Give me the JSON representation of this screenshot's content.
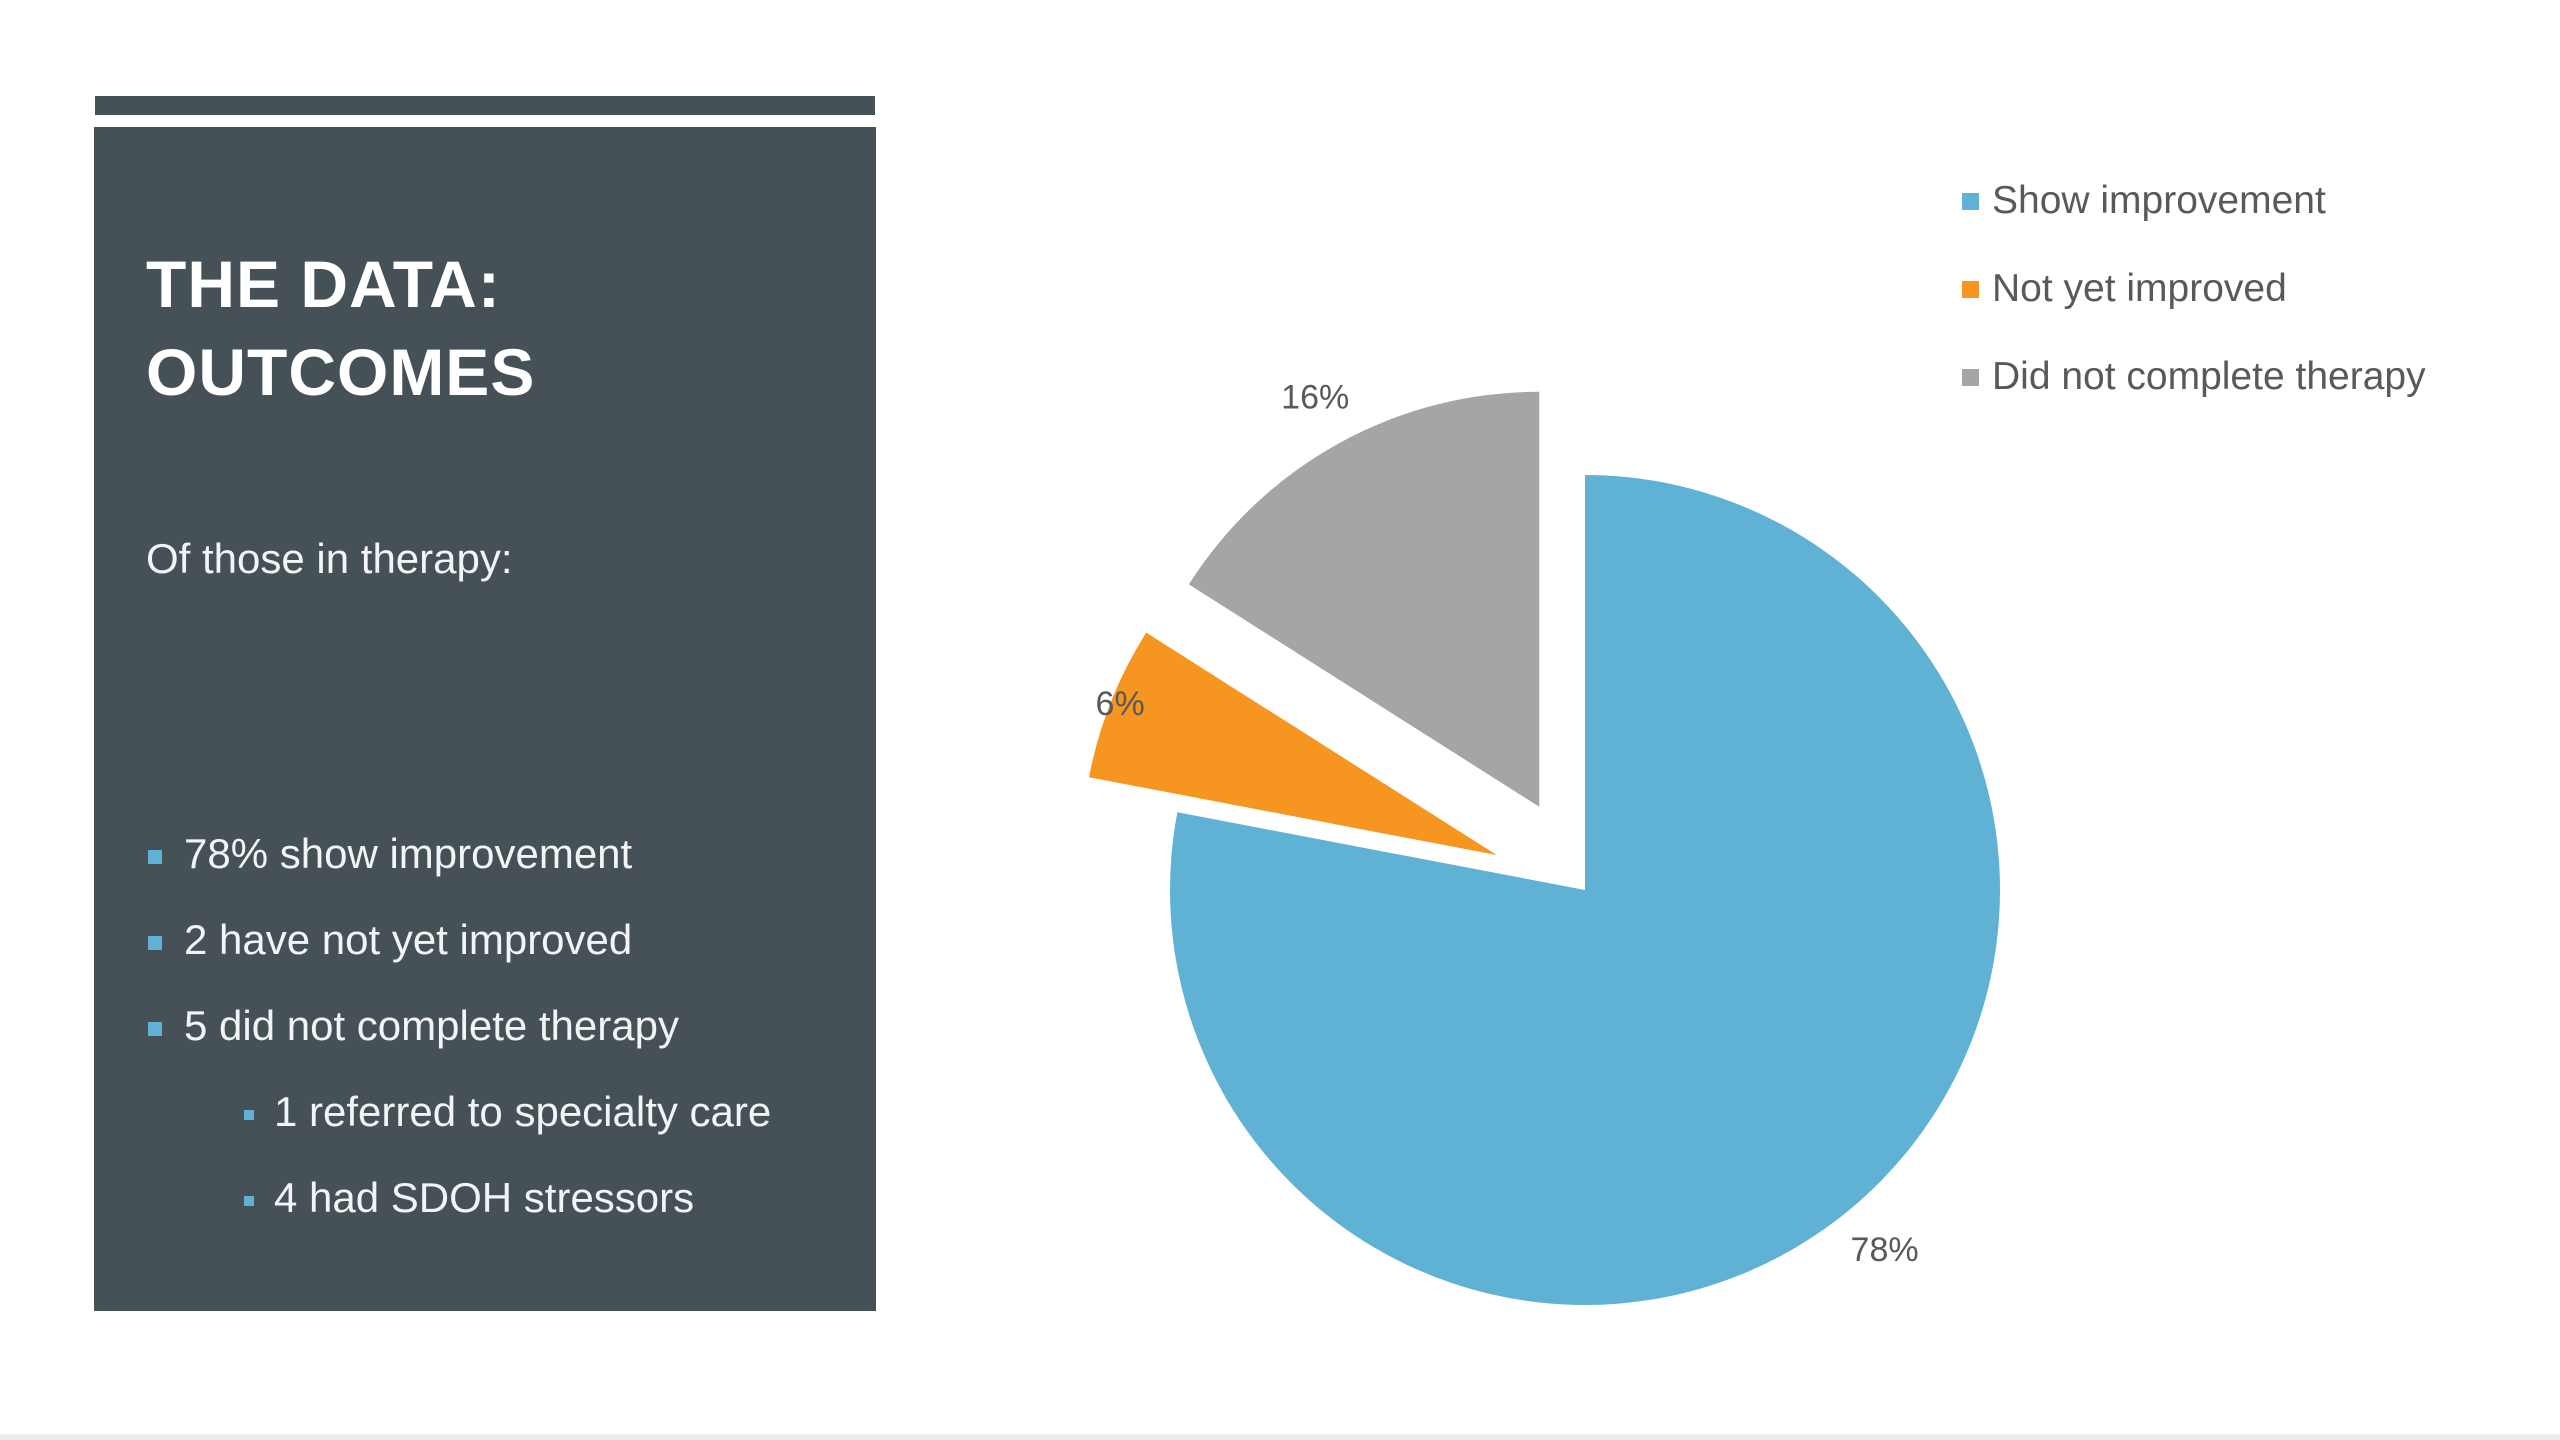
{
  "slide": {
    "title_line1": "THE DATA:",
    "title_line2": "OUTCOMES",
    "intro": "Of those in therapy:",
    "bullets": [
      "78% show improvement",
      "2 have not yet improved",
      "5 did not complete therapy"
    ],
    "sub_bullets": [
      "1 referred to specialty care",
      "4 had SDOH stressors"
    ],
    "panel_color": "#465157",
    "bullet_color": "#5fb2d3"
  },
  "chart_data": {
    "type": "pie",
    "title": "",
    "categories": [
      "Show improvement",
      "Not yet improved",
      "Did not complete therapy"
    ],
    "values": [
      78,
      6,
      16
    ],
    "data_labels": [
      "78%",
      "6%",
      "16%"
    ],
    "colors": [
      "#5fb2d3",
      "#f6951f",
      "#a5a5a5"
    ],
    "exploded": [
      false,
      true,
      true
    ],
    "start_angle_deg": 0,
    "direction": "clockwise",
    "legend_position": "top-right"
  }
}
